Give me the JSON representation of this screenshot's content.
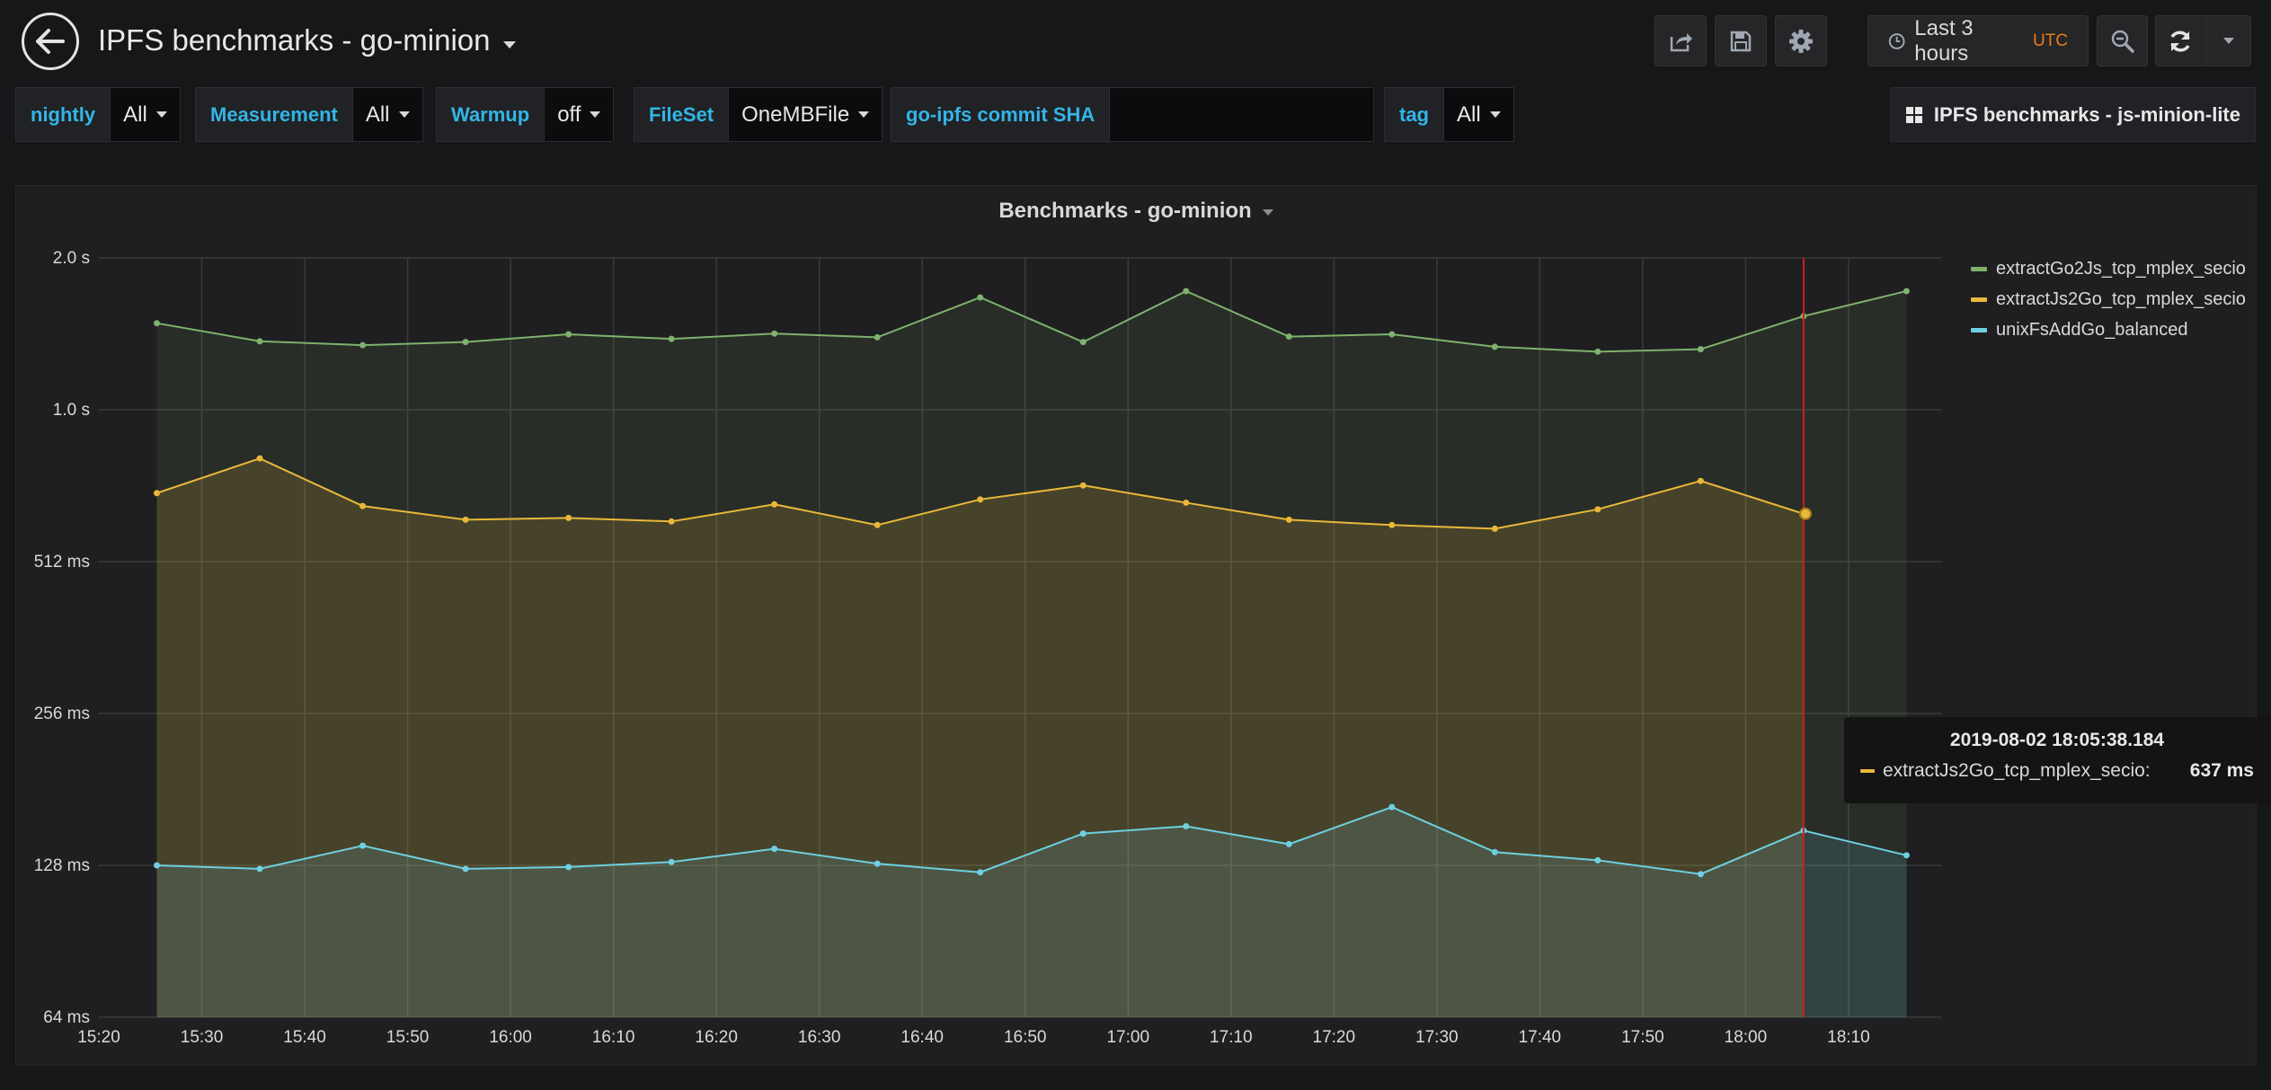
{
  "navbar": {
    "title": "IPFS benchmarks - go-minion",
    "time_range": "Last 3 hours",
    "timezone": "UTC"
  },
  "variables": [
    {
      "label": "nightly",
      "value": "All"
    },
    {
      "label": "Measurement",
      "value": "All"
    },
    {
      "label": "Warmup",
      "value": "off"
    },
    {
      "label": "FileSet",
      "value": "OneMBFile"
    },
    {
      "label": "go-ipfs commit SHA",
      "value": ""
    },
    {
      "label": "tag",
      "value": "All"
    }
  ],
  "dashboard_link": "IPFS benchmarks - js-minion-lite",
  "colors": {
    "accent": "#33b5e5",
    "utc": "#eb7b18",
    "series_green": "#7eb26d",
    "series_yellow": "#eab839",
    "series_cyan": "#6ed0e0",
    "cursor": "#cc1e1e"
  },
  "panel": {
    "title": "Benchmarks - go-minion"
  },
  "chart_data": {
    "type": "line",
    "title": "Benchmarks - go-minion",
    "y_scale": "log2",
    "ylim_ms": [
      64,
      2048
    ],
    "y_ticks": [
      "64 ms",
      "128 ms",
      "256 ms",
      "512 ms",
      "1.0 s",
      "2.0 s"
    ],
    "x_ticks": [
      "15:20",
      "15:30",
      "15:40",
      "15:50",
      "16:00",
      "16:10",
      "16:20",
      "16:30",
      "16:40",
      "16:50",
      "17:00",
      "17:10",
      "17:20",
      "17:30",
      "17:40",
      "17:50",
      "18:00",
      "18:10"
    ],
    "xlim": [
      "15:20",
      "18:19"
    ],
    "grid": true,
    "legend_position": "right",
    "x": [
      "15:25:38",
      "15:35:38",
      "15:45:38",
      "15:55:38",
      "16:05:38",
      "16:15:38",
      "16:25:38",
      "16:35:38",
      "16:45:38",
      "16:55:38",
      "17:05:38",
      "17:15:38",
      "17:25:38",
      "17:35:38",
      "17:45:38",
      "17:55:38",
      "18:05:38",
      "18:15:38"
    ],
    "series": [
      {
        "name": "extractGo2Js_tcp_mplex_secio",
        "color": "#7eb26d",
        "values_ms": [
          1520,
          1400,
          1375,
          1395,
          1445,
          1415,
          1450,
          1425,
          1710,
          1395,
          1760,
          1430,
          1445,
          1365,
          1335,
          1350,
          1570,
          1760
        ]
      },
      {
        "name": "extractJs2Go_tcp_mplex_secio",
        "color": "#eab839",
        "values_ms": [
          700,
          820,
          660,
          620,
          625,
          615,
          665,
          605,
          680,
          725,
          670,
          620,
          605,
          595,
          650,
          740,
          637,
          null
        ]
      },
      {
        "name": "unixFsAddGo_balanced",
        "color": "#6ed0e0",
        "values_ms": [
          128,
          126,
          140,
          126,
          127,
          130,
          138,
          129,
          124,
          148,
          153,
          141,
          167,
          136,
          131,
          123,
          150,
          134
        ]
      }
    ],
    "tooltip": {
      "time": "2019-08-02 18:05:38.184",
      "series": "extractJs2Go_tcp_mplex_secio",
      "label": "extractJs2Go_tcp_mplex_secio:",
      "value": "637 ms"
    }
  }
}
